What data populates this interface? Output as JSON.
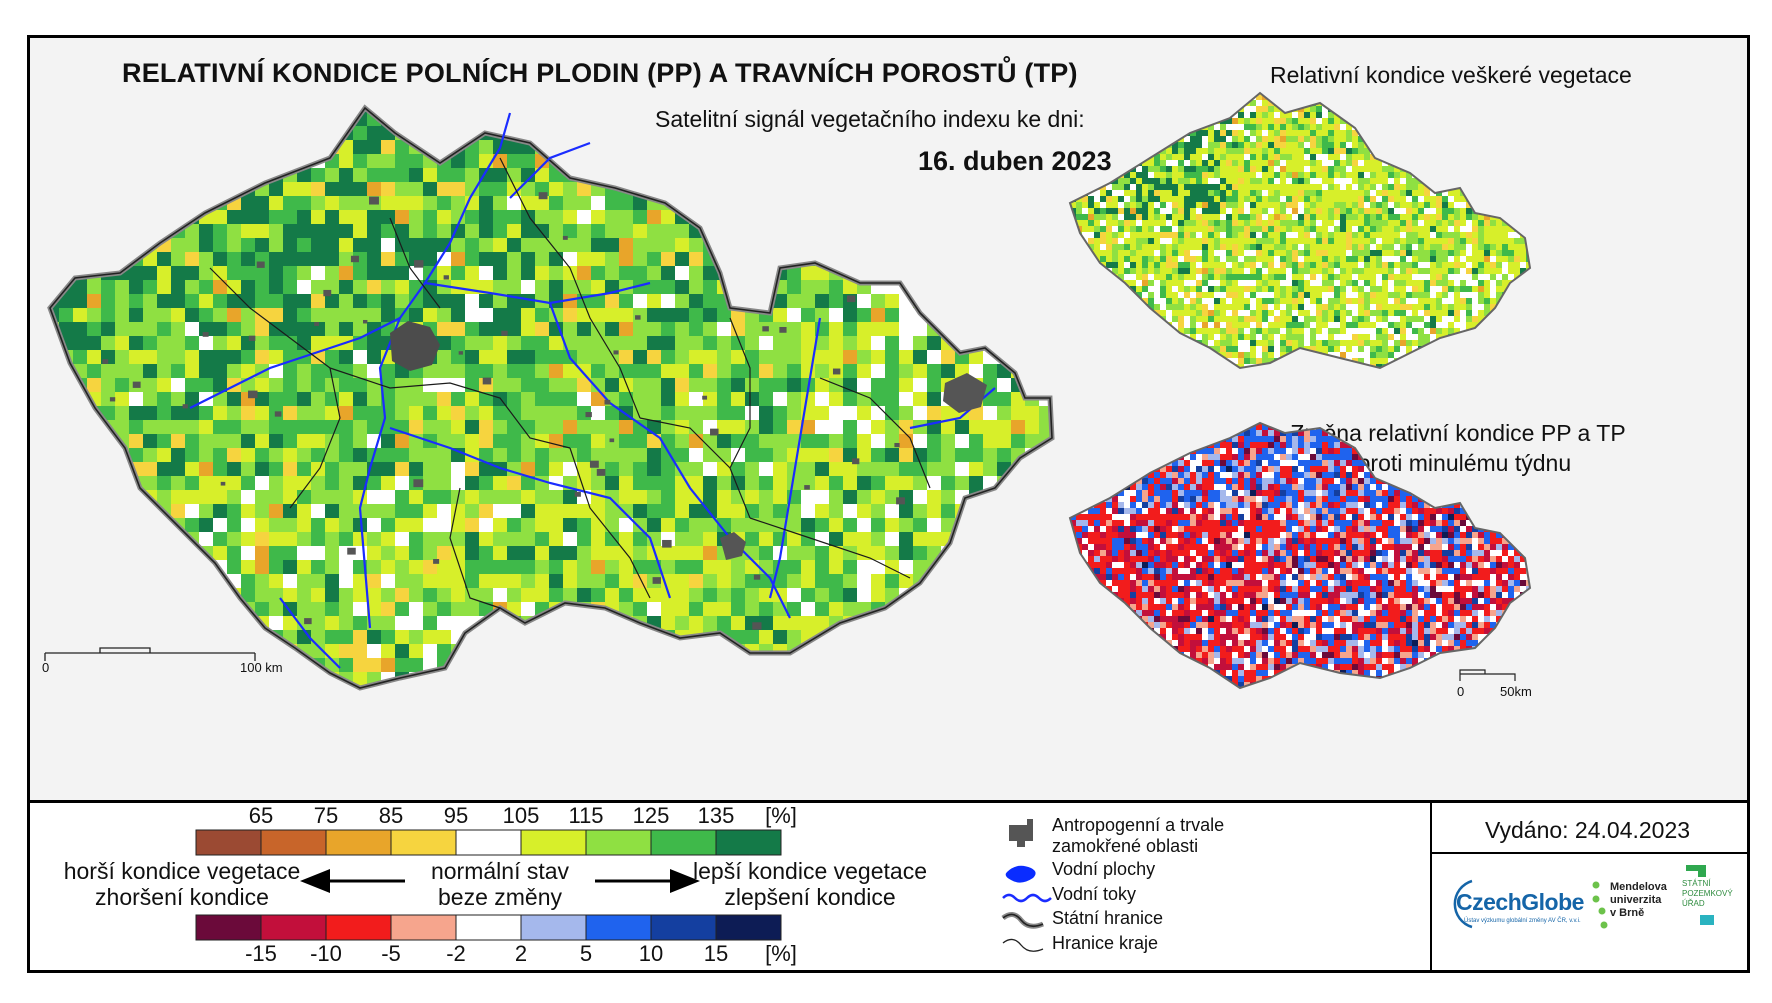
{
  "title": "RELATIVNÍ KONDICE POLNÍCH PLODIN (PP) A TRAVNÍCH POROSTŮ (TP)",
  "subtitle": "Satelitní signál vegetačního indexu ke dni:",
  "date": "16. duben 2023",
  "side_maps": {
    "top_title": "Relativní kondice veškeré vegetace",
    "bottom_title_line1": "Změna relativní kondice PP a TP",
    "bottom_title_line2": "oproti minulému týdnu"
  },
  "scale_bars": {
    "main": {
      "start": "0",
      "end": "100 km"
    },
    "small": {
      "start": "0",
      "end": "50km"
    }
  },
  "condition_legend": {
    "ticks": [
      "65",
      "75",
      "85",
      "95",
      "105",
      "115",
      "125",
      "135",
      "[%]"
    ],
    "colors": [
      "#9b4a33",
      "#c8652a",
      "#e8a52a",
      "#f6d43f",
      "#ffffff",
      "#d7ef2a",
      "#8fe042",
      "#3fb94a",
      "#147a48"
    ]
  },
  "change_legend": {
    "ticks": [
      "-15",
      "-10",
      "-5",
      "-2",
      "2",
      "5",
      "10",
      "15",
      "[%]"
    ],
    "colors": [
      "#6b0a3a",
      "#c20f3b",
      "#f21c1c",
      "#f6a58d",
      "#ffffff",
      "#a5b8ec",
      "#1f63ee",
      "#143fa0",
      "#0d1c55"
    ]
  },
  "captions": {
    "worse_line1": "horší kondice vegetace",
    "worse_line2": "zhoršení kondice",
    "normal_line1": "normální stav",
    "normal_line2": "beze změny",
    "better_line1": "lepší kondice vegetace",
    "better_line2": "zlepšení kondice"
  },
  "map_legend": [
    {
      "icon": "urban-area-icon",
      "label_line1": "Antropogenní a trvale",
      "label_line2": "zamokřené oblasti"
    },
    {
      "icon": "water-body-icon",
      "label_line1": "Vodní plochy"
    },
    {
      "icon": "river-icon",
      "label_line1": "Vodní toky"
    },
    {
      "icon": "state-border-icon",
      "label_line1": "Státní hranice"
    },
    {
      "icon": "region-border-icon",
      "label_line1": "Hranice kraje"
    }
  ],
  "issued": "Vydáno: 24.04.2023",
  "logos": {
    "czechglobe": "CzechGlobe",
    "czechglobe_sub": "Ústav výzkumu globální změny AV ČR, v.v.i.",
    "mendel_line1": "Mendelova",
    "mendel_line2": "univerzita",
    "mendel_line3": "v Brně",
    "spu_line1": "STÁTNÍ",
    "spu_line2": "POZEMKOVÝ",
    "spu_line3": "ÚŘAD"
  }
}
